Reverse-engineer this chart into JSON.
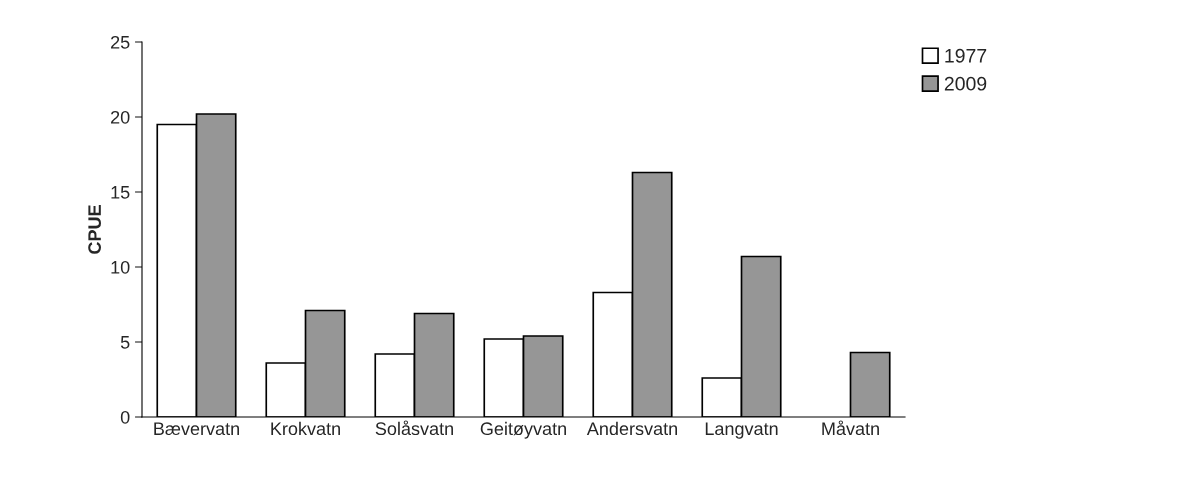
{
  "chart_data": {
    "type": "bar",
    "ylabel": "CPUE",
    "categories": [
      "Bævervatn",
      "Krokvatn",
      "Solåsvatn",
      "Geitøyvatn",
      "Andersvatn",
      "Langvatn",
      "Måvatn"
    ],
    "series": [
      {
        "name": "1977",
        "color": "#ffffff",
        "values": [
          19.5,
          3.6,
          4.2,
          5.2,
          8.3,
          2.6,
          null
        ]
      },
      {
        "name": "2009",
        "color": "#969696",
        "values": [
          20.2,
          7.1,
          6.9,
          5.4,
          16.3,
          10.7,
          4.3
        ]
      }
    ],
    "ylim": [
      0,
      25
    ],
    "yticks": [
      0,
      5,
      10,
      15,
      20,
      25
    ],
    "grid": false,
    "legend": "top right"
  }
}
